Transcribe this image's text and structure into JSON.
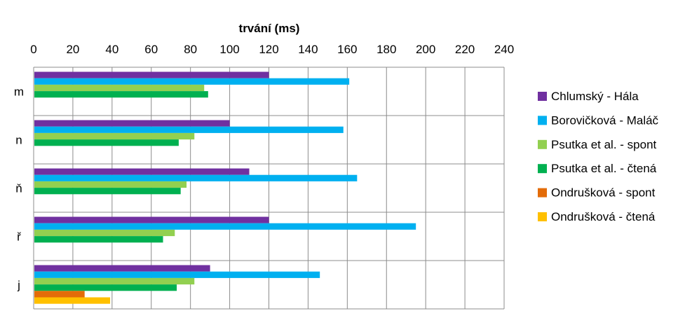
{
  "chart_data": {
    "type": "bar",
    "orientation": "horizontal",
    "title": "",
    "xlabel": "trvání (ms)",
    "ylabel": "",
    "xlim": [
      0,
      240
    ],
    "x_ticks": [
      0,
      20,
      40,
      60,
      80,
      100,
      120,
      140,
      160,
      180,
      200,
      220,
      240
    ],
    "x_axis_position": "top",
    "grid": true,
    "legend_position": "right",
    "categories": [
      "m",
      "n",
      "ň",
      "ř",
      "j"
    ],
    "series": [
      {
        "name": "Chlumský - Hála",
        "color": "#7030A0",
        "values": [
          120,
          100,
          110,
          120,
          90
        ]
      },
      {
        "name": "Borovičková - Maláč",
        "color": "#00B0F0",
        "values": [
          161,
          158,
          165,
          195,
          146
        ]
      },
      {
        "name": "Psutka et al. - spont",
        "color": "#92D050",
        "values": [
          87,
          82,
          78,
          72,
          82
        ]
      },
      {
        "name": "Psutka et al. - čtená",
        "color": "#00B050",
        "values": [
          89,
          74,
          75,
          66,
          73
        ]
      },
      {
        "name": "Ondrušková - spont",
        "color": "#E36C09",
        "values": [
          null,
          null,
          null,
          null,
          26
        ]
      },
      {
        "name": "Ondrušková - čtená",
        "color": "#FFC000",
        "values": [
          null,
          null,
          null,
          null,
          39
        ]
      }
    ]
  }
}
